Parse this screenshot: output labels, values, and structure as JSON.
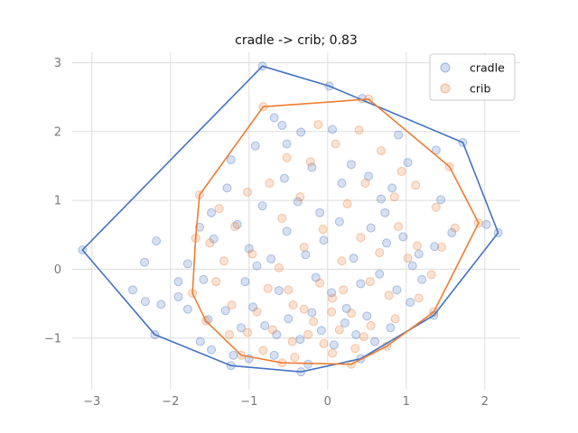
{
  "chart_data": {
    "type": "scatter",
    "title": "cradle -> crib; 0.83",
    "xlabel": "",
    "ylabel": "",
    "xlim": [
      -3.25,
      2.45
    ],
    "ylim": [
      -1.75,
      3.15
    ],
    "x_ticks": [
      -3,
      -2,
      -1,
      0,
      1,
      2
    ],
    "y_ticks": [
      -1,
      0,
      1,
      2,
      3
    ],
    "x_tick_labels": [
      "−3",
      "−2",
      "−1",
      "0",
      "1",
      "2"
    ],
    "y_tick_labels": [
      "−1",
      "0",
      "1",
      "2",
      "3"
    ],
    "grid": true,
    "legend_position": "top-right",
    "series": [
      {
        "name": "cradle",
        "color": "#4472c4",
        "hull": [
          [
            -0.83,
            2.95
          ],
          [
            0.02,
            2.66
          ],
          [
            1.72,
            1.84
          ],
          [
            2.17,
            0.53
          ],
          [
            1.35,
            -0.67
          ],
          [
            0.42,
            -1.3
          ],
          [
            -0.34,
            -1.49
          ],
          [
            -1.23,
            -1.4
          ],
          [
            -2.2,
            -0.95
          ],
          [
            -3.12,
            0.28
          ]
        ],
        "points": [
          [
            -0.83,
            2.95
          ],
          [
            0.02,
            2.66
          ],
          [
            1.72,
            1.84
          ],
          [
            2.17,
            0.53
          ],
          [
            2.02,
            0.65
          ],
          [
            1.35,
            -0.67
          ],
          [
            0.42,
            -1.3
          ],
          [
            -0.34,
            -1.49
          ],
          [
            -1.23,
            -1.4
          ],
          [
            -2.2,
            -0.95
          ],
          [
            -3.12,
            0.28
          ],
          [
            -2.18,
            0.41
          ],
          [
            -2.33,
            0.1
          ],
          [
            -2.48,
            -0.3
          ],
          [
            -2.32,
            -0.47
          ],
          [
            -2.12,
            -0.51
          ],
          [
            -1.9,
            -0.4
          ],
          [
            -1.78,
            -0.58
          ],
          [
            -1.52,
            -0.73
          ],
          [
            -1.62,
            -1.05
          ],
          [
            -1.48,
            -1.17
          ],
          [
            -1.2,
            -1.25
          ],
          [
            -1.0,
            -1.3
          ],
          [
            -0.68,
            -1.25
          ],
          [
            -0.25,
            -1.38
          ],
          [
            0.6,
            -1.05
          ],
          [
            0.8,
            -0.85
          ],
          [
            1.05,
            -0.48
          ],
          [
            1.16,
            0.22
          ],
          [
            1.36,
            0.33
          ],
          [
            1.58,
            0.53
          ],
          [
            1.44,
            1.01
          ],
          [
            1.38,
            1.73
          ],
          [
            0.9,
            1.95
          ],
          [
            1.02,
            1.55
          ],
          [
            0.82,
            1.18
          ],
          [
            0.73,
            0.82
          ],
          [
            0.52,
            1.35
          ],
          [
            0.44,
            2.48
          ],
          [
            0.06,
            2.03
          ],
          [
            -0.34,
            1.99
          ],
          [
            -0.58,
            2.09
          ],
          [
            -0.68,
            2.2
          ],
          [
            -0.52,
            1.82
          ],
          [
            -0.92,
            1.79
          ],
          [
            -1.23,
            1.59
          ],
          [
            -1.28,
            1.18
          ],
          [
            -1.48,
            0.82
          ],
          [
            -1.63,
            0.61
          ],
          [
            -1.78,
            0.08
          ],
          [
            -1.9,
            -0.18
          ],
          [
            -1.58,
            -0.15
          ],
          [
            -1.45,
            0.44
          ],
          [
            -1.15,
            0.65
          ],
          [
            -1.0,
            0.3
          ],
          [
            -0.83,
            0.92
          ],
          [
            -0.72,
            0.15
          ],
          [
            -0.62,
            -0.31
          ],
          [
            -0.52,
            0.55
          ],
          [
            -0.38,
            0.98
          ],
          [
            -0.28,
            0.21
          ],
          [
            -0.15,
            -0.12
          ],
          [
            -0.05,
            0.42
          ],
          [
            0.05,
            -0.34
          ],
          [
            0.15,
            0.69
          ],
          [
            0.24,
            -0.57
          ],
          [
            0.33,
            0.16
          ],
          [
            0.42,
            -0.21
          ],
          [
            0.55,
            0.6
          ],
          [
            0.66,
            -0.07
          ],
          [
            0.75,
            0.38
          ],
          [
            0.88,
            -0.3
          ],
          [
            0.96,
            0.47
          ],
          [
            1.08,
            0.05
          ],
          [
            1.2,
            -0.15
          ],
          [
            -0.95,
            -0.55
          ],
          [
            -0.8,
            -0.82
          ],
          [
            -0.65,
            -0.95
          ],
          [
            -0.5,
            -0.72
          ],
          [
            -0.35,
            -1.02
          ],
          [
            -0.2,
            -0.63
          ],
          [
            -0.08,
            -0.89
          ],
          [
            0.08,
            -1.1
          ],
          [
            0.22,
            -0.78
          ],
          [
            0.36,
            -0.95
          ],
          [
            0.5,
            -0.68
          ],
          [
            -1.1,
            -0.85
          ],
          [
            -1.3,
            -0.6
          ],
          [
            -1.05,
            -0.18
          ],
          [
            -0.9,
            0.05
          ],
          [
            -0.55,
            1.32
          ],
          [
            -0.2,
            1.48
          ],
          [
            0.18,
            1.25
          ],
          [
            0.3,
            1.52
          ],
          [
            -0.1,
            0.82
          ],
          [
            0.68,
            1.02
          ]
        ]
      },
      {
        "name": "crib",
        "color": "#ed7d31",
        "hull": [
          [
            -0.82,
            2.36
          ],
          [
            0.52,
            2.47
          ],
          [
            1.55,
            1.49
          ],
          [
            1.92,
            0.67
          ],
          [
            1.35,
            -0.62
          ],
          [
            0.75,
            -1.12
          ],
          [
            0.3,
            -1.38
          ],
          [
            -0.58,
            -1.36
          ],
          [
            -1.1,
            -1.25
          ],
          [
            -1.55,
            -0.75
          ],
          [
            -1.72,
            -0.35
          ],
          [
            -1.68,
            0.45
          ],
          [
            -1.63,
            1.08
          ]
        ],
        "points": [
          [
            -0.82,
            2.36
          ],
          [
            0.52,
            2.47
          ],
          [
            1.55,
            1.49
          ],
          [
            1.92,
            0.67
          ],
          [
            1.35,
            -0.62
          ],
          [
            0.75,
            -1.12
          ],
          [
            0.3,
            -1.38
          ],
          [
            -0.58,
            -1.36
          ],
          [
            -1.1,
            -1.25
          ],
          [
            -1.55,
            -0.75
          ],
          [
            -1.72,
            -0.35
          ],
          [
            -1.68,
            0.45
          ],
          [
            -1.63,
            1.08
          ],
          [
            -1.38,
            0.88
          ],
          [
            -1.5,
            0.38
          ],
          [
            -1.42,
            -0.18
          ],
          [
            -1.22,
            -0.52
          ],
          [
            -1.02,
            -0.92
          ],
          [
            -0.82,
            -1.18
          ],
          [
            -0.42,
            -1.28
          ],
          [
            0.06,
            -1.22
          ],
          [
            0.46,
            -0.98
          ],
          [
            0.86,
            -0.72
          ],
          [
            1.16,
            -0.42
          ],
          [
            1.32,
            -0.08
          ],
          [
            1.45,
            0.32
          ],
          [
            1.62,
            0.6
          ],
          [
            1.38,
            0.9
          ],
          [
            1.12,
            1.22
          ],
          [
            0.94,
            1.42
          ],
          [
            0.68,
            1.72
          ],
          [
            0.4,
            2.02
          ],
          [
            0.1,
            1.82
          ],
          [
            -0.22,
            1.56
          ],
          [
            -0.52,
            1.62
          ],
          [
            -0.74,
            1.25
          ],
          [
            -1.02,
            1.12
          ],
          [
            -1.18,
            0.62
          ],
          [
            -0.96,
            0.22
          ],
          [
            -0.76,
            -0.28
          ],
          [
            -0.58,
            0.74
          ],
          [
            -0.44,
            -0.52
          ],
          [
            -0.3,
            0.32
          ],
          [
            -0.18,
            -0.76
          ],
          [
            -0.06,
            0.58
          ],
          [
            0.06,
            -0.42
          ],
          [
            0.18,
            0.12
          ],
          [
            0.3,
            -0.64
          ],
          [
            0.42,
            0.46
          ],
          [
            0.54,
            -0.18
          ],
          [
            0.66,
            0.24
          ],
          [
            0.78,
            -0.38
          ],
          [
            0.9,
            0.62
          ],
          [
            1.02,
            0.16
          ],
          [
            1.14,
            0.34
          ],
          [
            -0.9,
            -0.62
          ],
          [
            -0.7,
            -0.88
          ],
          [
            -0.45,
            -1.05
          ],
          [
            -0.25,
            -0.95
          ],
          [
            -0.05,
            -1.08
          ],
          [
            0.15,
            -0.88
          ],
          [
            0.35,
            -1.15
          ],
          [
            0.55,
            -0.82
          ],
          [
            -1.25,
            -0.95
          ],
          [
            -1.32,
            0.12
          ],
          [
            -0.62,
            0.02
          ],
          [
            -0.35,
            1.05
          ],
          [
            0.25,
            0.95
          ],
          [
            0.48,
            1.25
          ],
          [
            -0.12,
            2.1
          ],
          [
            0.85,
            1.05
          ],
          [
            -0.5,
            -0.3
          ],
          [
            -0.1,
            -0.2
          ],
          [
            0.2,
            -0.3
          ],
          [
            -0.3,
            -0.58
          ],
          [
            0.05,
            -0.62
          ]
        ]
      }
    ]
  }
}
